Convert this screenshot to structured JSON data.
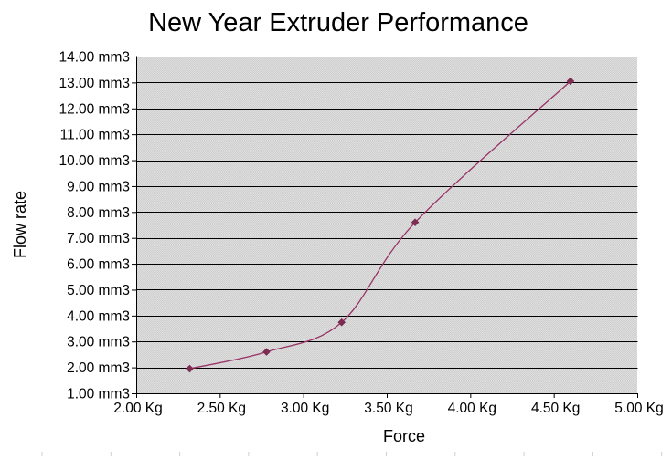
{
  "chart_data": {
    "type": "line",
    "title": "New Year Extruder Performance",
    "xlabel": "Force",
    "ylabel": "Flow rate",
    "x_unit": "Kg",
    "y_unit": "mm3",
    "xlim": [
      2.0,
      5.0
    ],
    "xtick_step": 0.5,
    "ylim": [
      1.0,
      14.0
    ],
    "ytick_step": 1.0,
    "xticks": [
      "2.00 Kg",
      "2.50 Kg",
      "3.00 Kg",
      "3.50 Kg",
      "4.00 Kg",
      "4.50 Kg",
      "5.00 Kg"
    ],
    "yticks": [
      "1.00 mm3",
      "2.00 mm3",
      "3.00 mm3",
      "4.00 mm3",
      "5.00 mm3",
      "6.00 mm3",
      "7.00 mm3",
      "8.00 mm3",
      "9.00 mm3",
      "10.00 mm3",
      "11.00 mm3",
      "12.00 mm3",
      "13.00 mm3",
      "14.00 mm3"
    ],
    "grid": "horizontal",
    "legend": "none",
    "plot_bg_color": "#d8d8d8",
    "gridline_color": "#000000",
    "series": [
      {
        "name": "Flow rate",
        "line_color": "#993366",
        "marker": "diamond",
        "marker_color": "#7c2d52",
        "smooth": true,
        "points": [
          [
            2.32,
            1.95
          ],
          [
            2.78,
            2.6
          ],
          [
            3.23,
            3.74
          ],
          [
            3.67,
            7.6
          ],
          [
            4.6,
            13.05
          ]
        ]
      }
    ]
  }
}
